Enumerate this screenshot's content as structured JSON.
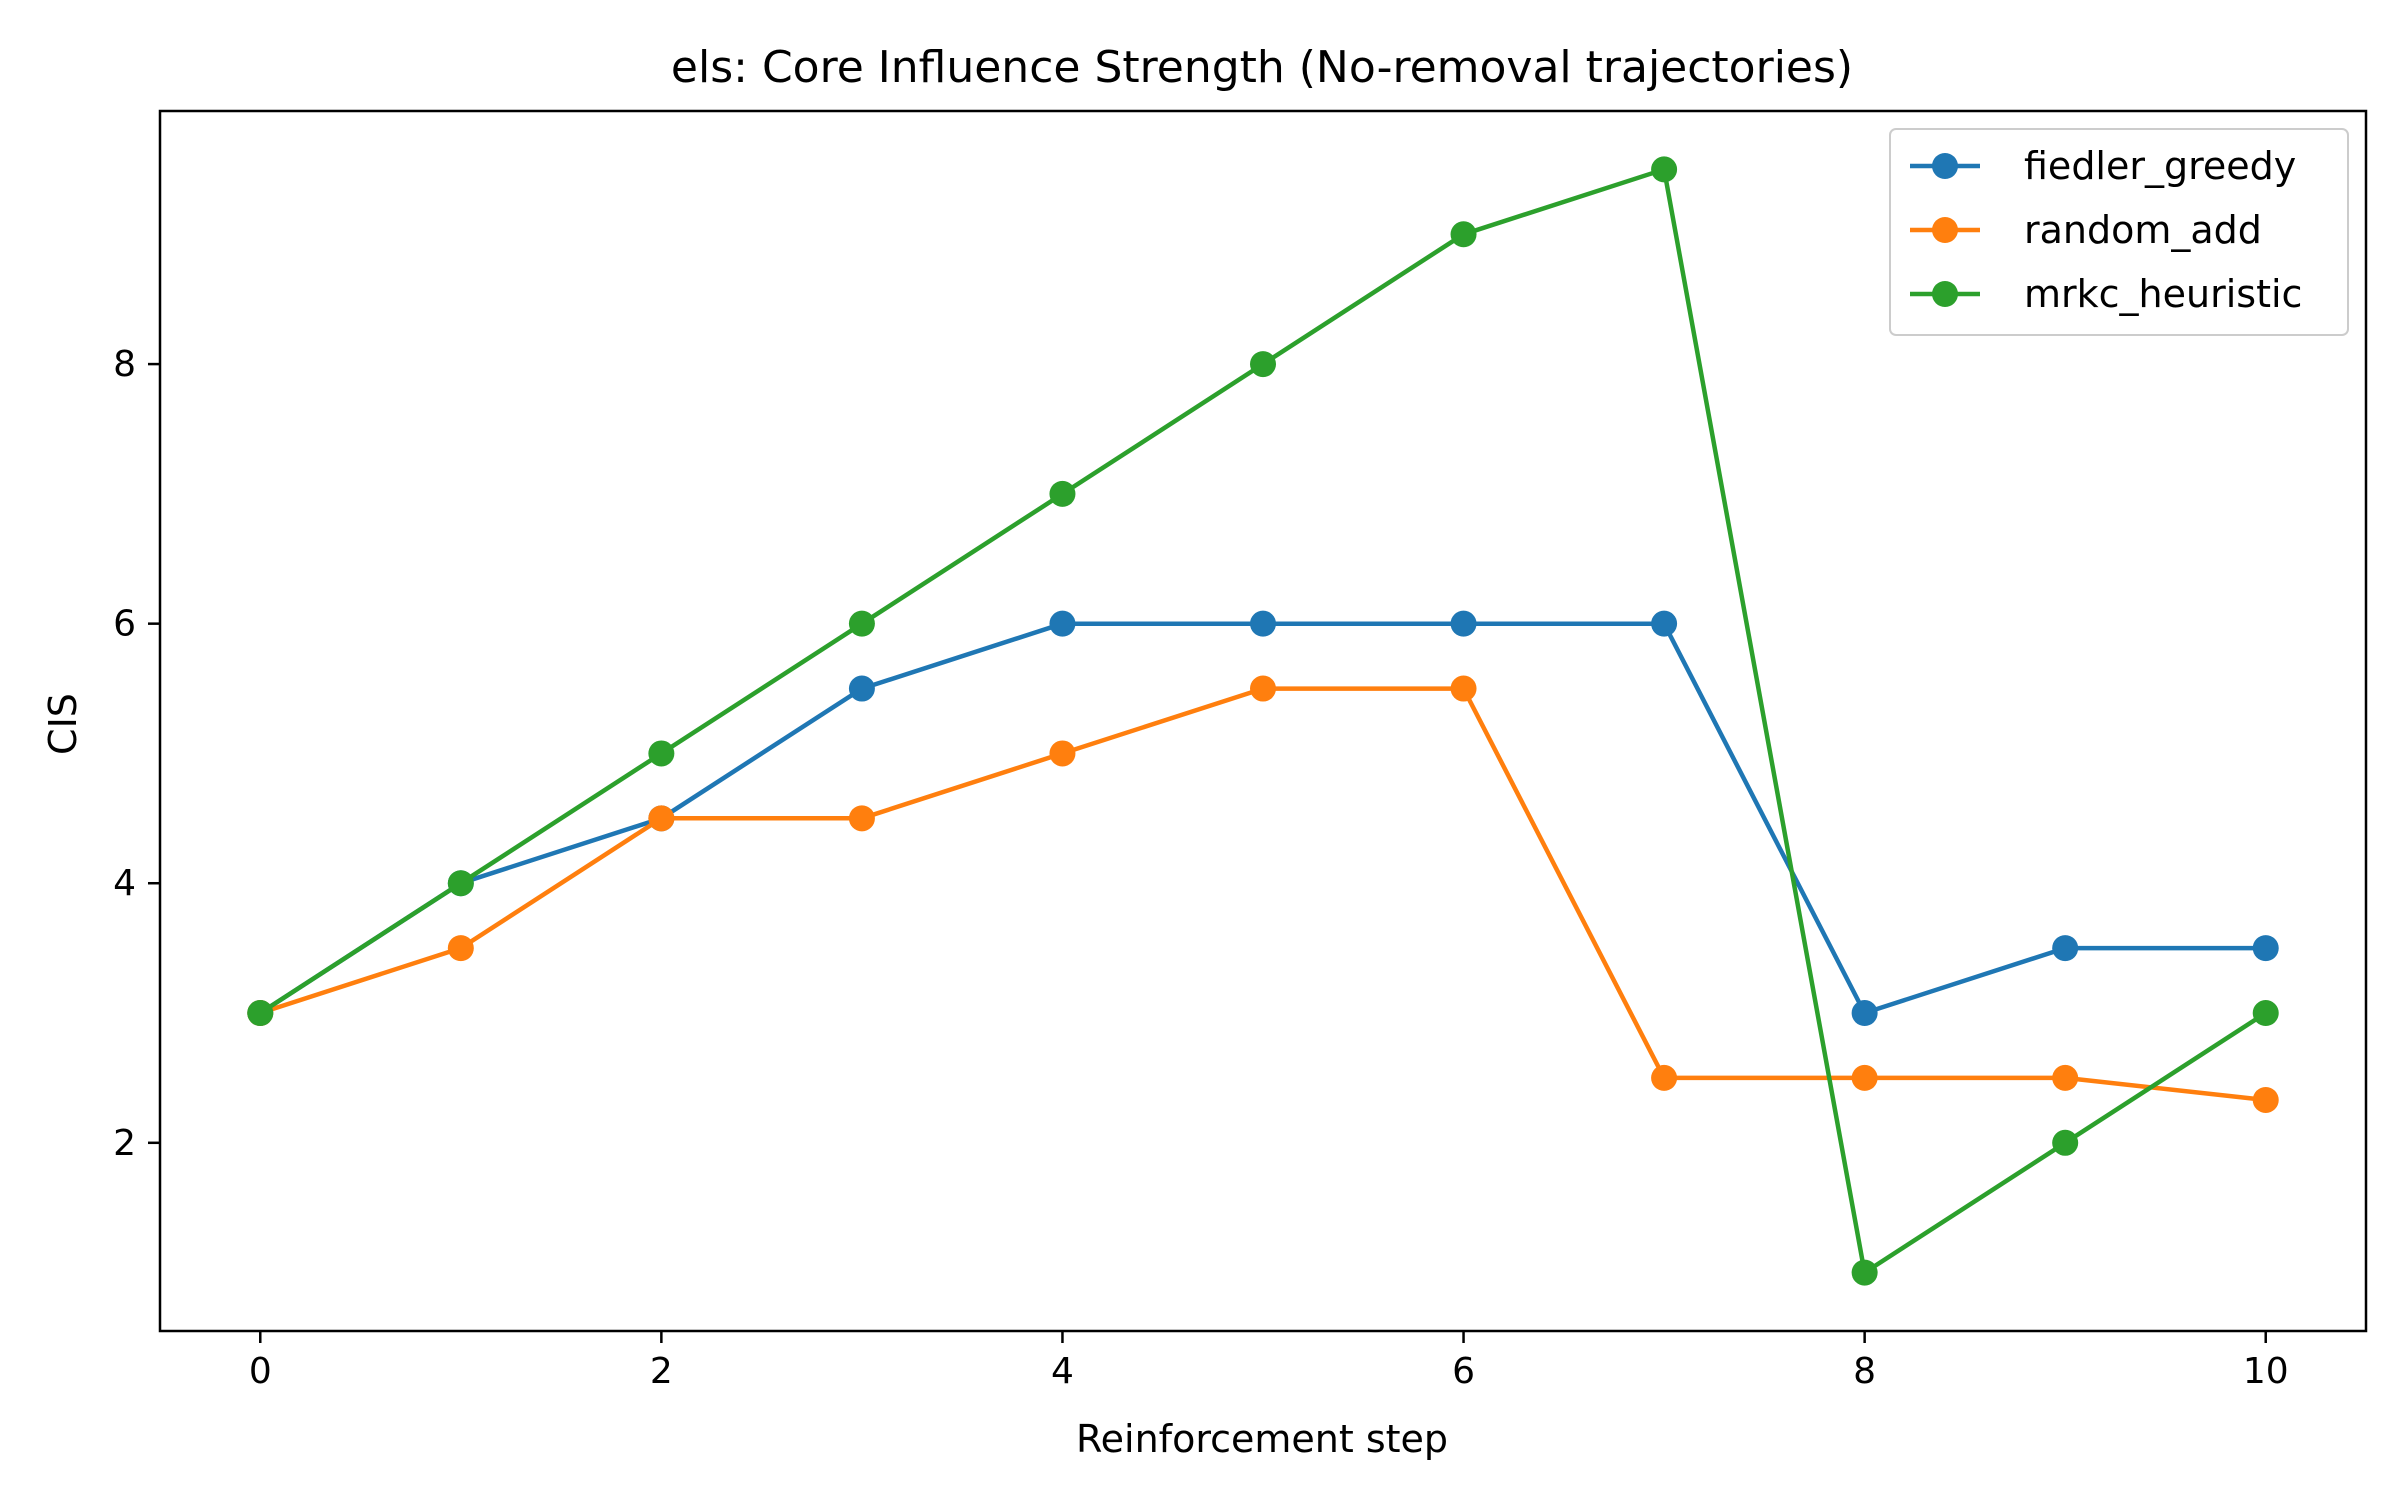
{
  "chart_data": {
    "type": "line",
    "title": "els: Core Influence Strength (No-removal trajectories)",
    "xlabel": "Reinforcement step",
    "ylabel": "CIS",
    "xlim": [
      -0.5,
      10.5
    ],
    "ylim": [
      0.55,
      9.95
    ],
    "xticks": [
      0,
      2,
      4,
      6,
      8,
      10
    ],
    "yticks": [
      2,
      4,
      6,
      8
    ],
    "grid": false,
    "legend_position": "top-right",
    "x": [
      0,
      1,
      2,
      3,
      4,
      5,
      6,
      7,
      8,
      9,
      10
    ],
    "series": [
      {
        "name": "fiedler_greedy",
        "color": "#1f77b4",
        "values": [
          3,
          4,
          4.5,
          5.5,
          6,
          6,
          6,
          6,
          3,
          3.5,
          3.5
        ]
      },
      {
        "name": "random_add",
        "color": "#ff7f0e",
        "values": [
          3,
          3.5,
          4.5,
          4.5,
          5,
          5.5,
          5.5,
          2.5,
          2.5,
          2.5,
          2.33
        ]
      },
      {
        "name": "mrkc_heuristic",
        "color": "#2ca02c",
        "values": [
          3,
          4,
          5,
          6,
          7,
          8,
          9,
          9.5,
          1,
          2,
          3
        ]
      }
    ]
  }
}
